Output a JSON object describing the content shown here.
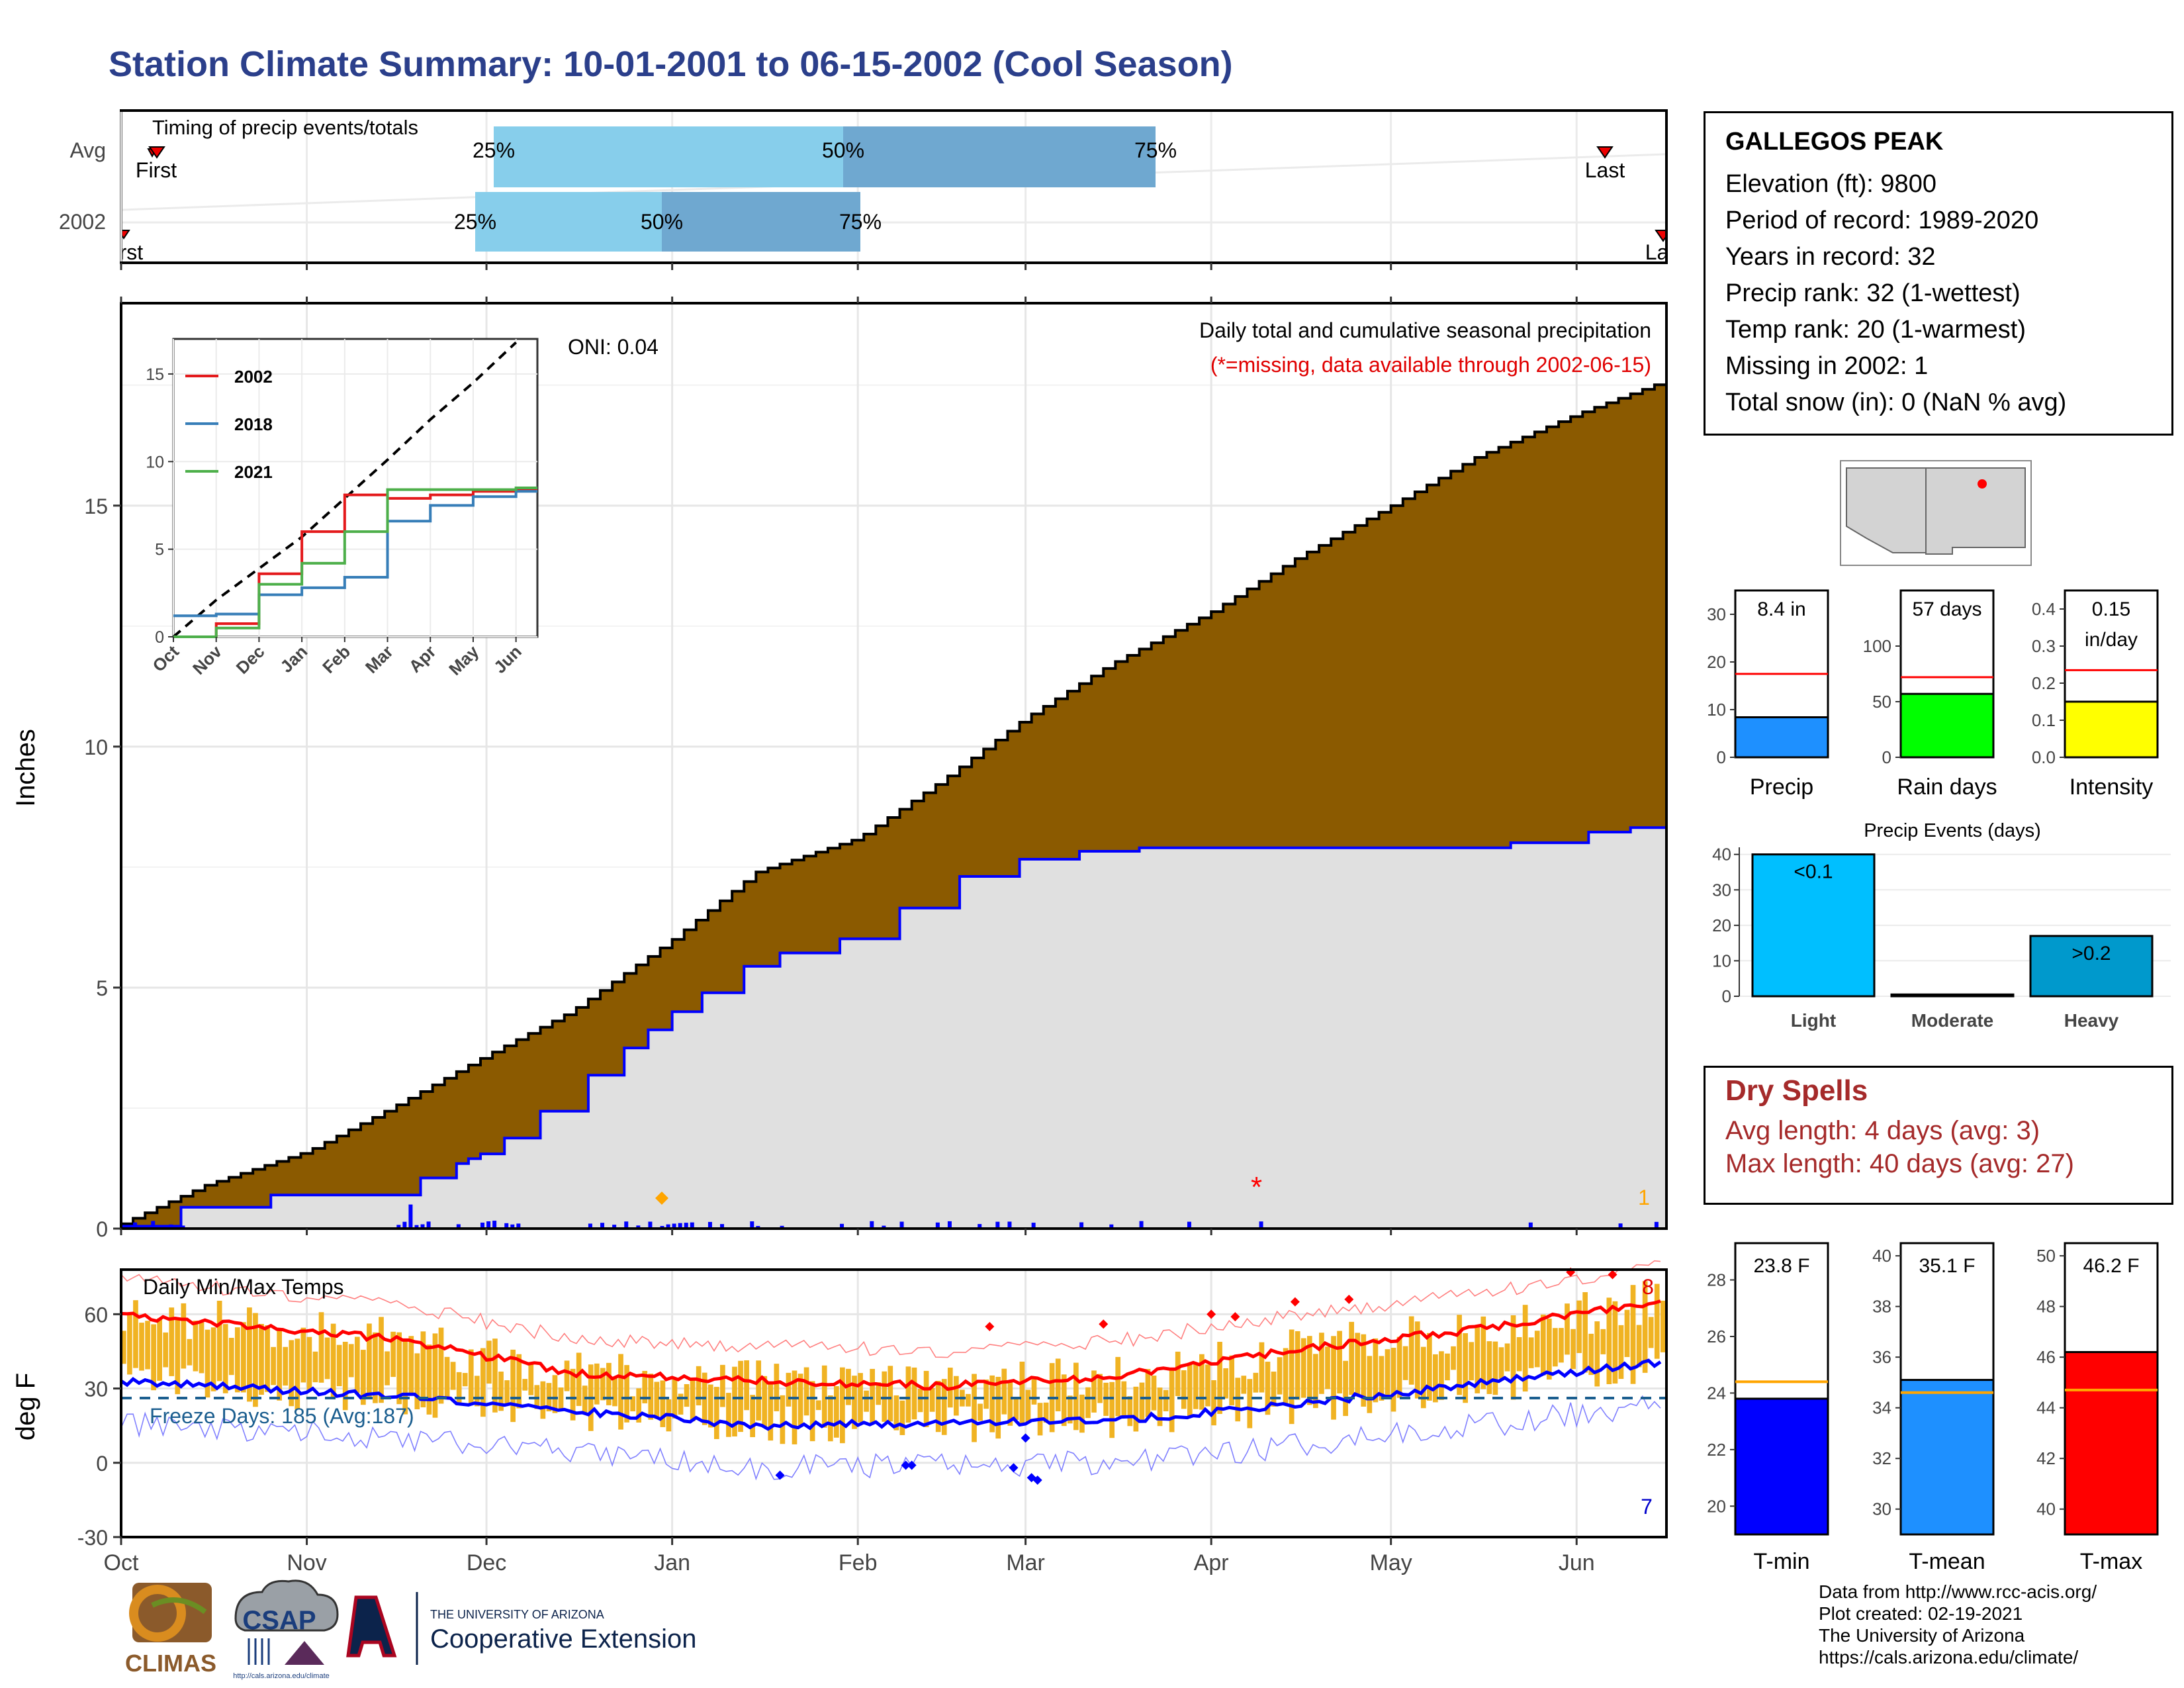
{
  "title": "Station Climate Summary: 10-01-2001 to 06-15-2002 (Cool Season)",
  "timing": {
    "title": "Timing of precip events/totals",
    "rows": [
      {
        "label": "Avg",
        "first": "First",
        "last": "Last",
        "q25": "25%",
        "q50": "50%",
        "q75": "75%"
      },
      {
        "label": "2002",
        "first": "First",
        "last": "Last",
        "q25": "25%",
        "q50": "50%",
        "q75": "75%"
      }
    ]
  },
  "precip_panel": {
    "ylabel": "Inches",
    "yticks": [
      "0",
      "5",
      "10",
      "15"
    ],
    "note1": "Daily total and cumulative seasonal precipitation",
    "note2": "(*=missing, data available through 2002-06-15)",
    "oni": "ONI: 0.04",
    "missing_marker": "*",
    "missing_count": "1",
    "colors": {
      "cumulative_fill": "#8b5a00",
      "avg_fill": "#e0e0e0",
      "line": "#0000ff",
      "missing": "#ff0000",
      "count": "#ffa500"
    }
  },
  "inset": {
    "yticks": [
      "0",
      "5",
      "10",
      "15"
    ],
    "xticks": [
      "Oct",
      "Nov",
      "Dec",
      "Jan",
      "Feb",
      "Mar",
      "Apr",
      "May",
      "Jun"
    ],
    "legend": [
      {
        "name": "2002",
        "color": "#e41a1c"
      },
      {
        "name": "2018",
        "color": "#377eb8"
      },
      {
        "name": "2021",
        "color": "#4daf4a"
      }
    ]
  },
  "temp_panel": {
    "title": "Daily Min/Max Temps",
    "ylabel": "deg F",
    "yticks": [
      "-30",
      "0",
      "30",
      "60"
    ],
    "freeze": "Freeze Days: 185 (Avg:187)",
    "max_count": "8",
    "min_count": "7"
  },
  "xaxis": [
    "Oct",
    "Nov",
    "Dec",
    "Jan",
    "Feb",
    "Mar",
    "Apr",
    "May",
    "Jun"
  ],
  "station": {
    "name": "GALLEGOS PEAK",
    "lines": [
      "Elevation (ft): 9800",
      "Period of record: 1989-2020",
      "Years in record: 32",
      "Precip rank: 32 (1-wettest)",
      "Temp rank: 20 (1-warmest)",
      "Missing in 2002: 1",
      "Total snow (in): 0 (NaN % avg)"
    ]
  },
  "summary_bars": [
    {
      "label": "Precip",
      "value_label": "8.4 in",
      "yticks": [
        "0",
        "10",
        "20",
        "30"
      ],
      "color": "#1e90ff"
    },
    {
      "label": "Rain days",
      "value_label": "57 days",
      "yticks": [
        "0",
        "50",
        "100"
      ],
      "color": "#00ff00"
    },
    {
      "label": "Intensity",
      "value_label": "0.15",
      "value_unit": "in/day",
      "yticks": [
        "0.0",
        "0.1",
        "0.2",
        "0.3",
        "0.4"
      ],
      "color": "#ffff00"
    }
  ],
  "events": {
    "title": "Precip Events (days)",
    "yticks": [
      "0",
      "10",
      "20",
      "30",
      "40"
    ],
    "categories": [
      "Light",
      "Moderate",
      "Heavy"
    ],
    "bar_labels": [
      "<0.1",
      "",
      ">0.2"
    ],
    "colors": [
      "#00bfff",
      "#1e90ff",
      "#0099cc"
    ]
  },
  "dry": {
    "title": "Dry Spells",
    "line1": "Avg length: 4 days (avg: 3)",
    "line2": "Max length: 40 days (avg: 27)"
  },
  "temp_bars": [
    {
      "label": "T-min",
      "value_label": "23.8 F",
      "yticks": [
        "20",
        "22",
        "24",
        "26",
        "28"
      ],
      "color": "#0000ff"
    },
    {
      "label": "T-mean",
      "value_label": "35.1 F",
      "yticks": [
        "30",
        "32",
        "34",
        "36",
        "38",
        "40"
      ],
      "color": "#1e90ff"
    },
    {
      "label": "T-max",
      "value_label": "46.2 F",
      "yticks": [
        "40",
        "42",
        "44",
        "46",
        "48",
        "50"
      ],
      "color": "#ff0000"
    }
  ],
  "credits": [
    "Data from http://www.rcc-acis.org/",
    "Plot created: 02-19-2021",
    "The University of Arizona",
    "https://cals.arizona.edu/climate/"
  ],
  "logos": {
    "climas": "CLIMAS",
    "csap": "CSAP",
    "csap_url": "http://cals.arizona.edu/climate",
    "ua_small": "THE UNIVERSITY OF ARIZONA",
    "ua_big": "Cooperative Extension"
  },
  "chart_data": [
    {
      "type": "area",
      "title": "Daily total and cumulative seasonal precipitation",
      "ylabel": "Inches",
      "ylim": [
        0,
        19.2
      ],
      "x": [
        "2001-10-01",
        "2001-10-15",
        "2001-11-01",
        "2001-11-15",
        "2001-12-01",
        "2001-12-15",
        "2002-01-01",
        "2002-01-15",
        "2002-02-01",
        "2002-02-15",
        "2002-03-01",
        "2002-03-15",
        "2002-04-01",
        "2002-04-15",
        "2002-05-01",
        "2002-05-15",
        "2002-06-01",
        "2002-06-15"
      ],
      "series": [
        {
          "name": "",
          "values": [
            0.1,
            0.9,
            1.6,
            2.5,
            3.6,
            4.5,
            6.0,
            7.4,
            8.1,
            9.3,
            10.6,
            11.7,
            12.8,
            13.9,
            15.0,
            16.0,
            16.9,
            17.6
          ]
        },
        {
          "name": "",
          "values": [
            0.05,
            0.6,
            0.75,
            0.8,
            1.6,
            2.9,
            4.5,
            5.6,
            6.1,
            7.2,
            7.7,
            7.9,
            7.9,
            7.9,
            7.9,
            7.9,
            8.2,
            8.4
          ]
        }
      ]
    },
    {
      "type": "line",
      "title": "",
      "xlabel": "",
      "ylabel": "",
      "ylim": [
        0,
        17
      ],
      "x": [
        "Oct",
        "Nov",
        "Dec",
        "Jan",
        "Feb",
        "Mar",
        "Apr",
        "May",
        "Jun"
      ],
      "series": [
        {
          "name": "",
          "values": [
            0,
            2.1,
            3.9,
            5.7,
            7.9,
            10.1,
            12.4,
            14.5,
            16.8
          ]
        },
        {
          "name": "2002",
          "values": [
            0,
            0.75,
            3.6,
            6.0,
            8.1,
            7.9,
            8.1,
            8.3,
            8.4
          ]
        },
        {
          "name": "2018",
          "values": [
            1.2,
            1.3,
            2.4,
            2.8,
            3.4,
            6.6,
            7.5,
            8.0,
            8.3
          ]
        },
        {
          "name": "2021",
          "values": [
            0,
            0.5,
            3.0,
            4.2,
            6.0,
            8.4,
            8.4,
            8.4,
            8.5
          ]
        }
      ]
    },
    {
      "type": "line",
      "title": "Daily Min/Max Temps",
      "ylabel": "deg F",
      "ylim": [
        -30,
        78
      ],
      "x": [
        "Oct",
        "Nov",
        "Dec",
        "Jan",
        "Feb",
        "Mar",
        "Apr",
        "May",
        "Jun"
      ],
      "series": [
        {
          "name": "",
          "values": [
            60,
            50,
            36,
            33,
            31,
            35,
            46,
            54,
            66
          ]
        },
        {
          "name": "",
          "values": [
            33,
            27,
            21,
            15,
            16,
            17,
            24,
            32,
            41
          ]
        }
      ]
    },
    {
      "type": "bar",
      "categories": [
        "Precip",
        "Rain days",
        "Intensity"
      ],
      "series": [
        {
          "name": "",
          "values": [
            8.4,
            57,
            0.15
          ]
        },
        {
          "name": "",
          "values": [
            17.5,
            72,
            0.235
          ]
        }
      ]
    },
    {
      "type": "bar",
      "title": "Precip Events (days)",
      "categories": [
        "Light",
        "Moderate",
        "Heavy"
      ],
      "values": [
        40,
        0.5,
        17
      ],
      "ylim": [
        0,
        42
      ]
    },
    {
      "type": "bar",
      "categories": [
        "T-min",
        "T-mean",
        "T-max"
      ],
      "series": [
        {
          "name": "",
          "values": [
            23.8,
            35.1,
            46.2
          ]
        },
        {
          "name": "",
          "values": [
            24.4,
            34.6,
            44.7
          ]
        }
      ]
    }
  ]
}
